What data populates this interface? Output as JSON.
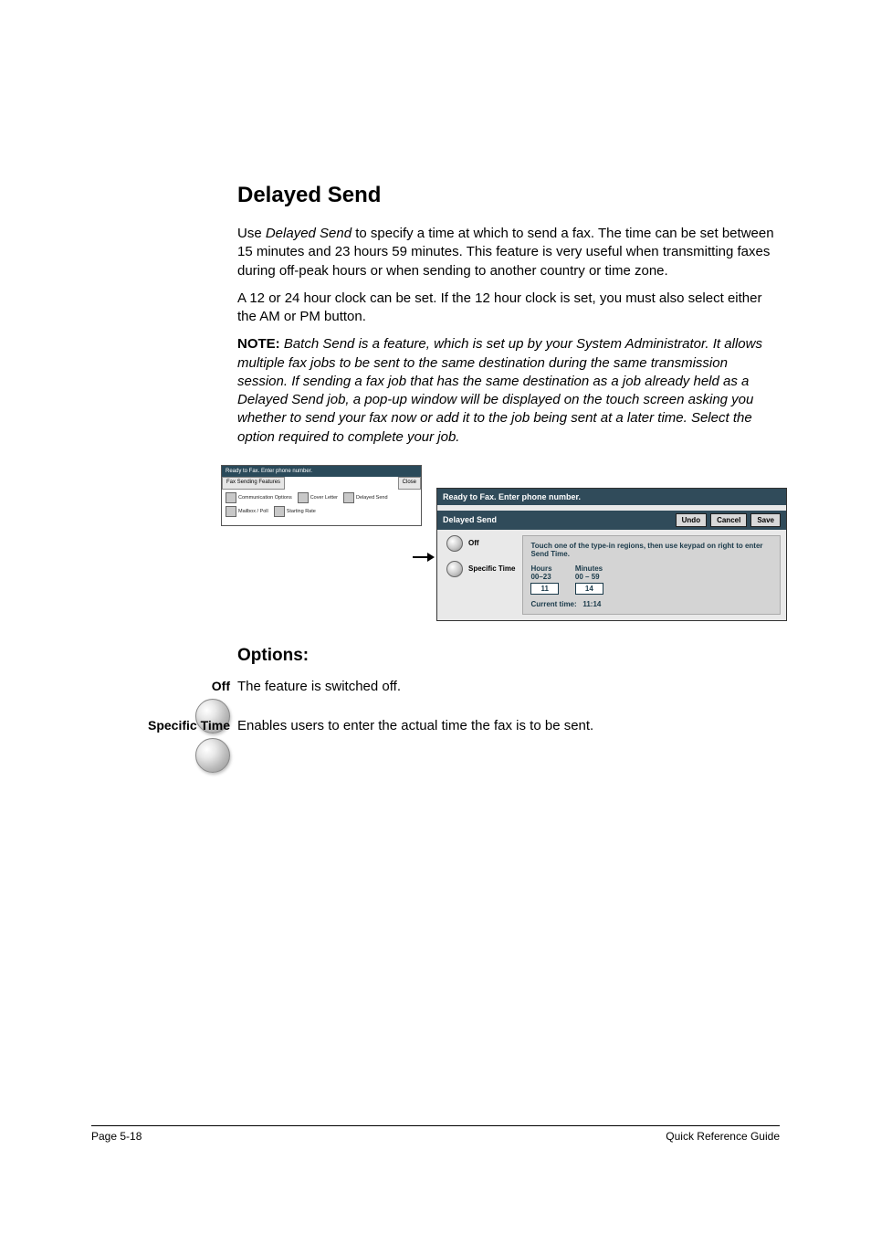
{
  "section": {
    "title": "Delayed Send",
    "para1": "Use Delayed Send to specify a time at which to send a fax. The time can be set between 15 minutes and 23 hours 59 minutes. This feature is very useful when transmitting faxes during off-peak hours or when sending to another country or time zone.",
    "para2": "A 12 or 24 hour clock can be set. If the 12 hour clock is set, you must also select either the AM or PM button.",
    "note_label": "NOTE:",
    "note_body": " Batch Send is a feature, which is set up by your System Administrator. It allows multiple fax jobs to be sent to the same destination during the same transmission session. If sending a fax job that has the same destination as a job already held as a Delayed Send job, a pop-up window will be displayed on the touch screen asking you whether to send your fax now or add it to the job being sent at a later time. Select the option required to complete your job."
  },
  "panel_left": {
    "status": "Ready to Fax. Enter phone number.",
    "tab_title": "Fax Sending Features",
    "close": "Close",
    "items": [
      "Communication Options",
      "Cover Letter",
      "Delayed Send",
      "Mailbox / Poll",
      "Starting Rate"
    ]
  },
  "panel_right": {
    "status": "Ready to Fax. Enter phone number.",
    "title": "Delayed Send",
    "buttons": {
      "undo": "Undo",
      "cancel": "Cancel",
      "save": "Save"
    },
    "opt_off": "Off",
    "opt_specific": "Specific Time",
    "hint": "Touch one of the type-in regions, then use keypad on right to enter Send Time.",
    "hours_label": "Hours",
    "hours_range": "00–23",
    "minutes_label": "Minutes",
    "minutes_range": "00 – 59",
    "hours_value": "11",
    "minutes_value": "14",
    "current_time_label": "Current time:",
    "current_time_value": "11:14"
  },
  "options": {
    "heading": "Options:",
    "off": {
      "label": "Off",
      "desc": "The feature is switched off."
    },
    "specific": {
      "label": "Specific Time",
      "desc": "Enables users to enter the actual time the fax is to be sent."
    }
  },
  "footer": {
    "left": "Page 5-18",
    "right": "Quick Reference Guide"
  }
}
